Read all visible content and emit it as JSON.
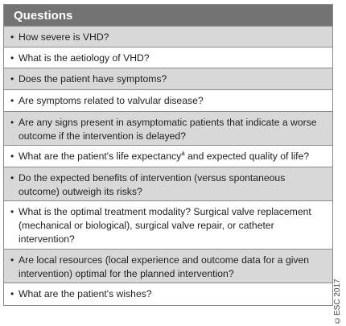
{
  "table": {
    "header": "Questions",
    "bullet": "•",
    "rows": [
      {
        "text": "How severe is VHD?"
      },
      {
        "text": "What is the aetiology of VHD?"
      },
      {
        "text": "Does the patient have symptoms?"
      },
      {
        "text": "Are symptoms related to valvular disease?"
      },
      {
        "text": "Are any signs present in asymptomatic patients that indicate a worse outcome if the intervention is delayed?"
      },
      {
        "text_before": "What are the patient's life expectancy",
        "superscript": "a",
        "text_after": " and expected quality of life?"
      },
      {
        "text": "Do the expected benefits of intervention (versus spontaneous outcome) outweigh its risks?"
      },
      {
        "text": "What is the optimal treatment modality? Surgical valve replacement (mechanical or biological), surgical valve repair, or catheter intervention?"
      },
      {
        "text": "Are local resources (local experience and outcome data for a given intervention) optimal for the planned intervention?"
      },
      {
        "text": "What are the patient's wishes?"
      }
    ]
  },
  "copyright": "©ESC 2017",
  "colors": {
    "header_bg": "#737373",
    "shaded_row_bg": "#d8d8d8",
    "plain_row_bg": "#ffffff",
    "border": "#8a8a8a"
  }
}
